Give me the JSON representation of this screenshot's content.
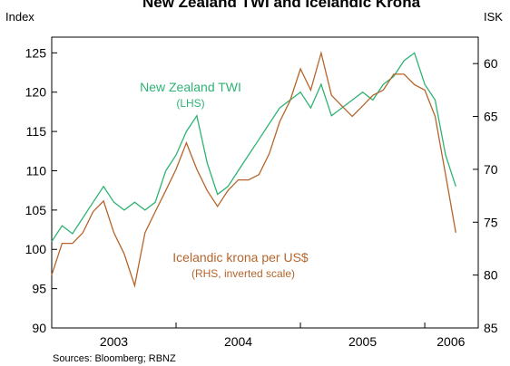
{
  "chart_data": {
    "type": "line",
    "title": "New Zealand TWI and Icelandic Krona",
    "y_label": "Index",
    "y2_label": "ISK",
    "source": "Sources: Bloomberg; RBNZ",
    "xlim": [
      2003,
      2006.43
    ],
    "xticks": [
      {
        "value": 2003.5,
        "label": "2003"
      },
      {
        "value": 2004.5,
        "label": "2004"
      },
      {
        "value": 2005.5,
        "label": "2005"
      },
      {
        "value": 2006.21,
        "label": "2006"
      }
    ],
    "year_ticks": [
      2004,
      2005,
      2006
    ],
    "ylim": [
      90,
      127
    ],
    "yticks": [
      90,
      95,
      100,
      105,
      110,
      115,
      120,
      125
    ],
    "y2lim": [
      85,
      57.5
    ],
    "y2ticks": [
      60,
      65,
      70,
      75,
      80,
      85
    ],
    "grid": false,
    "x": [
      2003.0,
      2003.083,
      2003.167,
      2003.25,
      2003.333,
      2003.417,
      2003.5,
      2003.583,
      2003.667,
      2003.75,
      2003.833,
      2003.917,
      2004.0,
      2004.083,
      2004.167,
      2004.25,
      2004.333,
      2004.417,
      2004.5,
      2004.583,
      2004.667,
      2004.75,
      2004.833,
      2004.917,
      2005.0,
      2005.083,
      2005.167,
      2005.25,
      2005.333,
      2005.417,
      2005.5,
      2005.583,
      2005.667,
      2005.75,
      2005.833,
      2005.917,
      2006.0,
      2006.083,
      2006.167,
      2006.25
    ],
    "series": [
      {
        "name": "New Zealand TWI",
        "color": "#2fb374",
        "axis": "y",
        "values": [
          101,
          103,
          102,
          104,
          106,
          108,
          106,
          105,
          106,
          105,
          106,
          110,
          112,
          115,
          117,
          111,
          107,
          108,
          110,
          112,
          114,
          116,
          118,
          119,
          120,
          118,
          121,
          117,
          118,
          119,
          120,
          119,
          121,
          122,
          124,
          125,
          121,
          119,
          112,
          108
        ]
      },
      {
        "name": "Icelandic krona per US$",
        "color": "#b5652b",
        "axis": "y2",
        "values": [
          80,
          77,
          77,
          76,
          74,
          73,
          76,
          78,
          81,
          76,
          74,
          72,
          70,
          67.5,
          70,
          72,
          73.5,
          72,
          71,
          71,
          70.5,
          68.5,
          65.5,
          63.5,
          60.5,
          62.5,
          59,
          63,
          64,
          65,
          64,
          63,
          62.5,
          61,
          61,
          62,
          62.5,
          65,
          70.5,
          76
        ]
      }
    ],
    "annotations": [
      {
        "text": "New Zealand TWI",
        "color": "#2fb374"
      },
      {
        "text": "(LHS)",
        "color": "#2fb374"
      },
      {
        "text": "Icelandic krona per US$",
        "color": "#b5652b"
      },
      {
        "text": "(RHS, inverted scale)",
        "color": "#b5652b"
      }
    ]
  }
}
